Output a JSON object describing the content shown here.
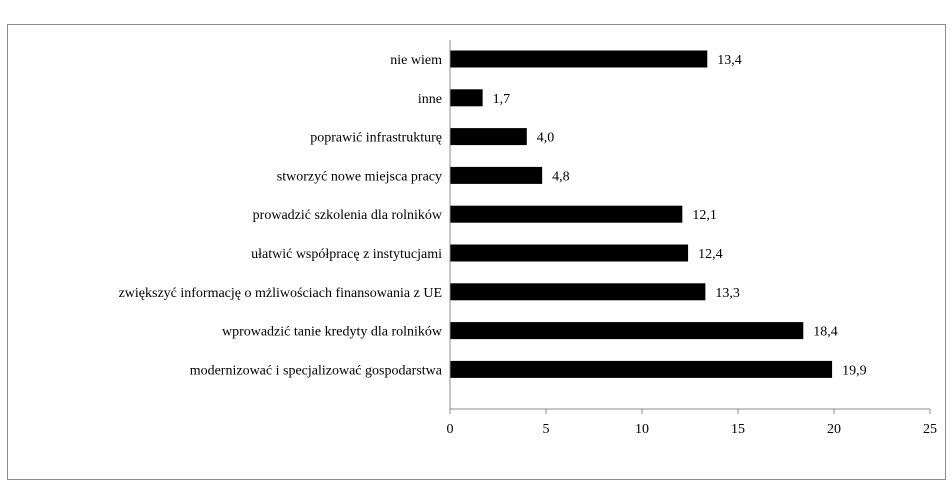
{
  "chart_data": {
    "type": "bar",
    "orientation": "horizontal",
    "categories": [
      "nie wiem",
      "inne",
      "poprawić infrastrukturę",
      "stworzyć nowe miejsca pracy",
      "prowadzić szkolenia dla rolników",
      "ułatwić współpracę z instytucjami",
      "zwiększyć informację o mżliwościach finansowania z UE",
      "wprowadzić tanie kredyty dla rolników",
      "modernizować i specjalizować gospodarstwa"
    ],
    "values": [
      13.4,
      1.7,
      4.0,
      4.8,
      12.1,
      12.4,
      13.3,
      18.4,
      19.9
    ],
    "value_labels": [
      "13,4",
      "1,7",
      "4,0",
      "4,8",
      "12,1",
      "12,4",
      "13,3",
      "18,4",
      "19,9"
    ],
    "x_ticks": [
      "0",
      "5",
      "10",
      "15",
      "20",
      "25"
    ],
    "xlim": [
      0,
      25
    ],
    "grid": false,
    "legend": "none",
    "bar_color": "#000000"
  }
}
